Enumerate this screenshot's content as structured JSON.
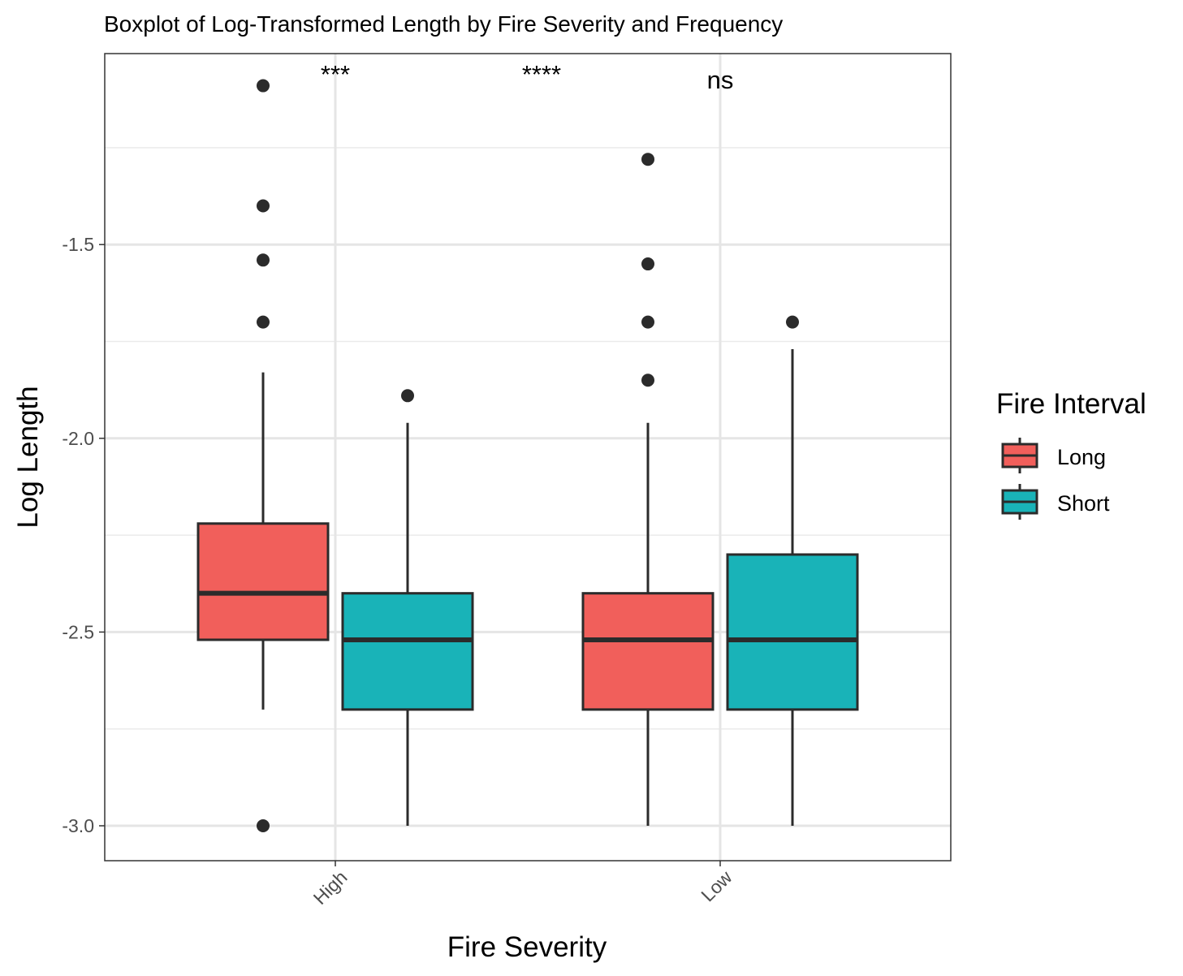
{
  "chart_data": {
    "type": "boxplot",
    "title": "Boxplot of Log-Transformed Length by Fire Severity and Frequency",
    "xlabel": "Fire Severity",
    "ylabel": "Log Length",
    "categories": [
      "High",
      "Low"
    ],
    "ylim": [
      -3.09,
      -1.0
    ],
    "yticks": [
      -3.0,
      -2.5,
      -2.0,
      -1.5
    ],
    "ytick_labels": [
      "-3.0",
      "-2.5",
      "-2.0",
      "-1.5"
    ],
    "legend": {
      "title": "Fire Interval",
      "position": "right",
      "entries": [
        {
          "name": "Long",
          "color": "#F15F5B"
        },
        {
          "name": "Short",
          "color": "#19B3B8"
        }
      ]
    },
    "groups": [
      {
        "category": "High",
        "series": "Long",
        "color": "#F15F5B",
        "q1": -2.52,
        "median": -2.4,
        "q3": -2.22,
        "whisker_low": -2.7,
        "whisker_high": -1.83,
        "outliers": [
          -1.09,
          -1.4,
          -1.54,
          -1.7,
          -3.0
        ]
      },
      {
        "category": "High",
        "series": "Short",
        "color": "#19B3B8",
        "q1": -2.7,
        "median": -2.52,
        "q3": -2.4,
        "whisker_low": -3.0,
        "whisker_high": -1.96,
        "outliers": [
          -1.89
        ]
      },
      {
        "category": "Low",
        "series": "Long",
        "color": "#F15F5B",
        "q1": -2.7,
        "median": -2.52,
        "q3": -2.4,
        "whisker_low": -3.0,
        "whisker_high": -1.96,
        "outliers": [
          -1.28,
          -1.55,
          -1.7,
          -1.85
        ]
      },
      {
        "category": "Low",
        "series": "Short",
        "color": "#19B3B8",
        "q1": -2.7,
        "median": -2.52,
        "q3": -2.3,
        "whisker_low": -3.0,
        "whisker_high": -1.77,
        "outliers": [
          -1.7
        ]
      }
    ],
    "annotations": [
      "***",
      "****",
      "ns"
    ]
  }
}
